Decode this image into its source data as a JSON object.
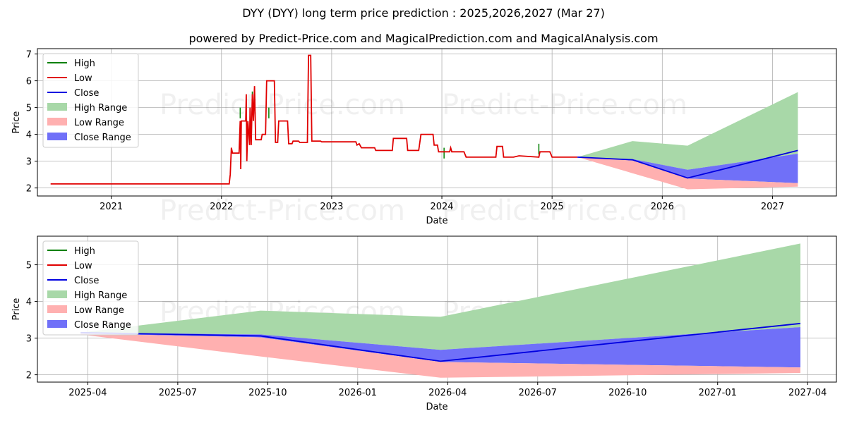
{
  "title": "DYY (DYY) long term price prediction : 2025,2026,2027 (Mar 27)",
  "subtitle": "powered by Predict-Price.com and MagicalPrediction.com and MagicalAnalysis.com",
  "watermark": "Predict-Price.com",
  "colors": {
    "high": "#008000",
    "low": "#e00000",
    "close": "#0000e0",
    "high_range": "#a8d8a8",
    "low_range": "#ffb0b0",
    "close_range": "#7070f8"
  },
  "chart_data": [
    {
      "type": "line",
      "name": "full-history",
      "xlabel": "Date",
      "ylabel": "Price",
      "xlim": [
        2020.33,
        2027.58
      ],
      "ylim": [
        1.7,
        7.2
      ],
      "xticks": [
        {
          "v": 2021.0,
          "label": "2021"
        },
        {
          "v": 2022.0,
          "label": "2022"
        },
        {
          "v": 2023.0,
          "label": "2023"
        },
        {
          "v": 2024.0,
          "label": "2024"
        },
        {
          "v": 2025.0,
          "label": "2025"
        },
        {
          "v": 2026.0,
          "label": "2026"
        },
        {
          "v": 2027.0,
          "label": "2027"
        }
      ],
      "yticks": [
        2,
        3,
        4,
        5,
        6,
        7
      ],
      "legend": [
        "High",
        "Low",
        "Close",
        "High Range",
        "Low Range",
        "Close Range"
      ],
      "legend_position": "top-left",
      "history_low": [
        [
          2020.45,
          2.15
        ],
        [
          2022.07,
          2.15
        ],
        [
          2022.08,
          2.5
        ],
        [
          2022.09,
          3.5
        ],
        [
          2022.1,
          3.3
        ],
        [
          2022.16,
          3.3
        ],
        [
          2022.17,
          4.5
        ],
        [
          2022.175,
          2.7
        ],
        [
          2022.18,
          4.5
        ],
        [
          2022.22,
          4.5
        ],
        [
          2022.225,
          5.5
        ],
        [
          2022.23,
          3.0
        ],
        [
          2022.24,
          4.5
        ],
        [
          2022.255,
          3.6
        ],
        [
          2022.26,
          5.0
        ],
        [
          2022.27,
          3.6
        ],
        [
          2022.28,
          5.5
        ],
        [
          2022.29,
          4.5
        ],
        [
          2022.3,
          5.8
        ],
        [
          2022.31,
          3.8
        ],
        [
          2022.36,
          3.8
        ],
        [
          2022.37,
          4.0
        ],
        [
          2022.4,
          4.0
        ],
        [
          2022.41,
          6.0
        ],
        [
          2022.48,
          6.0
        ],
        [
          2022.49,
          3.7
        ],
        [
          2022.51,
          3.7
        ],
        [
          2022.52,
          4.5
        ],
        [
          2022.6,
          4.5
        ],
        [
          2022.61,
          3.65
        ],
        [
          2022.64,
          3.65
        ],
        [
          2022.65,
          3.75
        ],
        [
          2022.7,
          3.75
        ],
        [
          2022.71,
          3.7
        ],
        [
          2022.78,
          3.7
        ],
        [
          2022.79,
          6.95
        ],
        [
          2022.81,
          6.95
        ],
        [
          2022.82,
          3.75
        ],
        [
          2022.9,
          3.75
        ],
        [
          2022.91,
          3.72
        ],
        [
          2023.22,
          3.72
        ],
        [
          2023.23,
          3.6
        ],
        [
          2023.25,
          3.65
        ],
        [
          2023.27,
          3.5
        ],
        [
          2023.39,
          3.5
        ],
        [
          2023.4,
          3.4
        ],
        [
          2023.55,
          3.4
        ],
        [
          2023.56,
          3.85
        ],
        [
          2023.68,
          3.85
        ],
        [
          2023.69,
          3.4
        ],
        [
          2023.79,
          3.4
        ],
        [
          2023.8,
          3.7
        ],
        [
          2023.81,
          4.0
        ],
        [
          2023.92,
          4.0
        ],
        [
          2023.93,
          3.6
        ],
        [
          2023.96,
          3.6
        ],
        [
          2023.97,
          3.35
        ],
        [
          2024.07,
          3.35
        ],
        [
          2024.08,
          3.5
        ],
        [
          2024.09,
          3.35
        ],
        [
          2024.2,
          3.35
        ],
        [
          2024.22,
          3.15
        ],
        [
          2024.49,
          3.15
        ],
        [
          2024.5,
          3.55
        ],
        [
          2024.55,
          3.55
        ],
        [
          2024.56,
          3.15
        ],
        [
          2024.65,
          3.15
        ],
        [
          2024.7,
          3.2
        ],
        [
          2024.88,
          3.15
        ],
        [
          2024.89,
          3.35
        ],
        [
          2024.98,
          3.35
        ],
        [
          2025.0,
          3.15
        ],
        [
          2025.23,
          3.15
        ]
      ],
      "history_high_spikes": [
        [
          2022.17,
          5.0
        ],
        [
          2022.28,
          5.6
        ],
        [
          2022.43,
          5.0
        ],
        [
          2024.02,
          3.5
        ],
        [
          2024.88,
          3.65
        ]
      ],
      "forecast": {
        "x": [
          2025.23,
          2025.73,
          2026.23,
          2027.23
        ],
        "high_top": [
          3.15,
          3.75,
          3.58,
          5.58
        ],
        "close_top": [
          3.15,
          3.08,
          2.68,
          3.28
        ],
        "close": [
          3.15,
          3.05,
          2.37,
          3.4
        ],
        "close_bottom": [
          3.15,
          3.02,
          2.35,
          2.18
        ],
        "low_top": [
          3.15,
          2.9,
          2.3,
          2.2
        ],
        "low_bottom": [
          3.15,
          2.55,
          1.95,
          2.05
        ]
      }
    },
    {
      "type": "line",
      "name": "forecast-zoom",
      "xlabel": "Date",
      "ylabel": "Price",
      "xlim": [
        2025.11,
        2027.33
      ],
      "ylim": [
        1.8,
        5.78
      ],
      "xticks": [
        {
          "v": 2025.25,
          "label": "2025-04"
        },
        {
          "v": 2025.5,
          "label": "2025-07"
        },
        {
          "v": 2025.75,
          "label": "2025-10"
        },
        {
          "v": 2026.0,
          "label": "2026-01"
        },
        {
          "v": 2026.25,
          "label": "2026-04"
        },
        {
          "v": 2026.5,
          "label": "2026-07"
        },
        {
          "v": 2026.75,
          "label": "2026-10"
        },
        {
          "v": 2027.0,
          "label": "2027-01"
        },
        {
          "v": 2027.25,
          "label": "2027-04"
        }
      ],
      "yticks": [
        2,
        3,
        4,
        5
      ],
      "legend": [
        "High",
        "Low",
        "Close",
        "High Range",
        "Low Range",
        "Close Range"
      ],
      "legend_position": "top-left",
      "forecast": {
        "x": [
          2025.23,
          2025.73,
          2026.23,
          2027.23
        ],
        "high_top": [
          3.15,
          3.75,
          3.58,
          5.58
        ],
        "close_top": [
          3.15,
          3.1,
          2.68,
          3.3
        ],
        "close": [
          3.15,
          3.06,
          2.37,
          3.4
        ],
        "close_bottom": [
          3.12,
          3.02,
          2.35,
          2.2
        ],
        "low_top": [
          3.12,
          2.95,
          2.33,
          2.18
        ],
        "low_bottom": [
          3.1,
          2.5,
          1.92,
          2.05
        ]
      }
    }
  ]
}
